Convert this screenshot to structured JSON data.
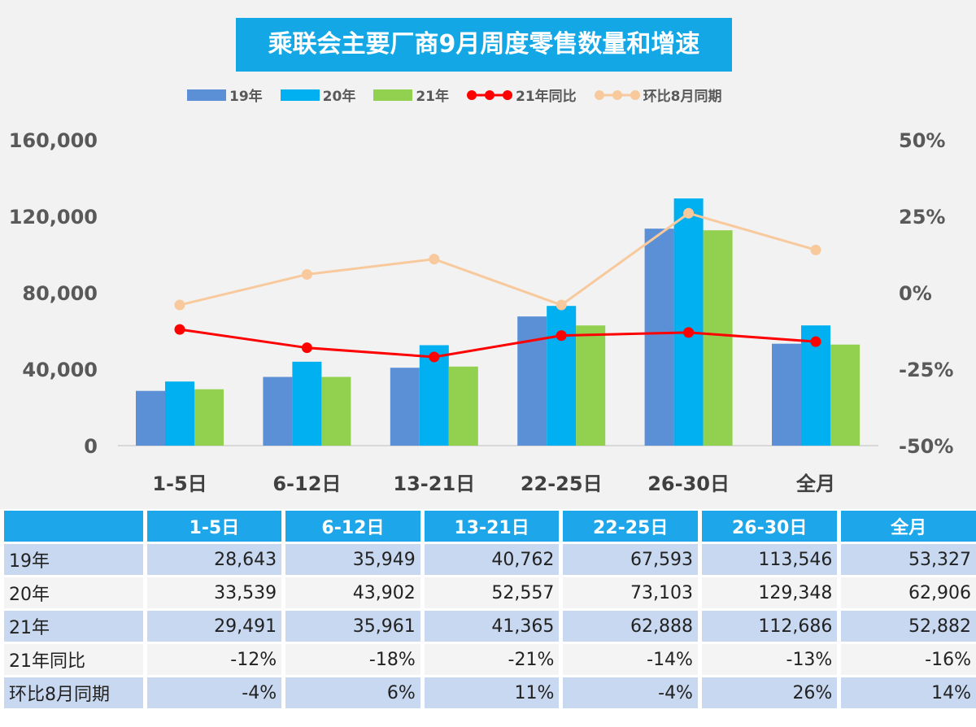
{
  "chart_data": {
    "type": "bar+line",
    "title": "乘联会主要厂商9月周度零售数量和增速",
    "categories": [
      "1-5日",
      "6-12日",
      "13-21日",
      "22-25日",
      "26-30日",
      "全月"
    ],
    "series": [
      {
        "name": "19年",
        "type": "bar",
        "axis": "left",
        "color": "#5b8fd6",
        "values": [
          28643,
          35949,
          40762,
          67593,
          113546,
          53327
        ]
      },
      {
        "name": "20年",
        "type": "bar",
        "axis": "left",
        "color": "#00b0f0",
        "values": [
          33539,
          43902,
          52557,
          73103,
          129348,
          62906
        ]
      },
      {
        "name": "21年",
        "type": "bar",
        "axis": "left",
        "color": "#92d050",
        "values": [
          29491,
          35961,
          41365,
          62888,
          112686,
          52882
        ]
      },
      {
        "name": "21年同比",
        "type": "line",
        "axis": "right",
        "color": "#ff0000",
        "values": [
          -12,
          -18,
          -21,
          -14,
          -13,
          -16
        ]
      },
      {
        "name": "环比8月同期",
        "type": "line",
        "axis": "right",
        "color": "#f8c99c",
        "values": [
          -4,
          6,
          11,
          -4,
          26,
          14
        ]
      }
    ],
    "left_axis": {
      "range": [
        0,
        160000
      ],
      "ticks": [
        "0",
        "40,000",
        "80,000",
        "120,000",
        "160,000"
      ]
    },
    "right_axis": {
      "range": [
        -50,
        50
      ],
      "unit": "%",
      "ticks": [
        "-50%",
        "-25%",
        "0%",
        "25%",
        "50%"
      ]
    },
    "legend": "top",
    "grid": false
  },
  "table": {
    "headers": [
      "",
      "1-5日",
      "6-12日",
      "13-21日",
      "22-25日",
      "26-30日",
      "全月"
    ],
    "rows": [
      [
        "19年",
        "28,643",
        "35,949",
        "40,762",
        "67,593",
        "113,546",
        "53,327"
      ],
      [
        "20年",
        "33,539",
        "43,902",
        "52,557",
        "73,103",
        "129,348",
        "62,906"
      ],
      [
        "21年",
        "29,491",
        "35,961",
        "41,365",
        "62,888",
        "112,686",
        "52,882"
      ],
      [
        "21年同比",
        "-12%",
        "-18%",
        "-21%",
        "-14%",
        "-13%",
        "-16%"
      ],
      [
        "环比8月同期",
        "-4%",
        "6%",
        "11%",
        "-4%",
        "26%",
        "14%"
      ]
    ]
  }
}
